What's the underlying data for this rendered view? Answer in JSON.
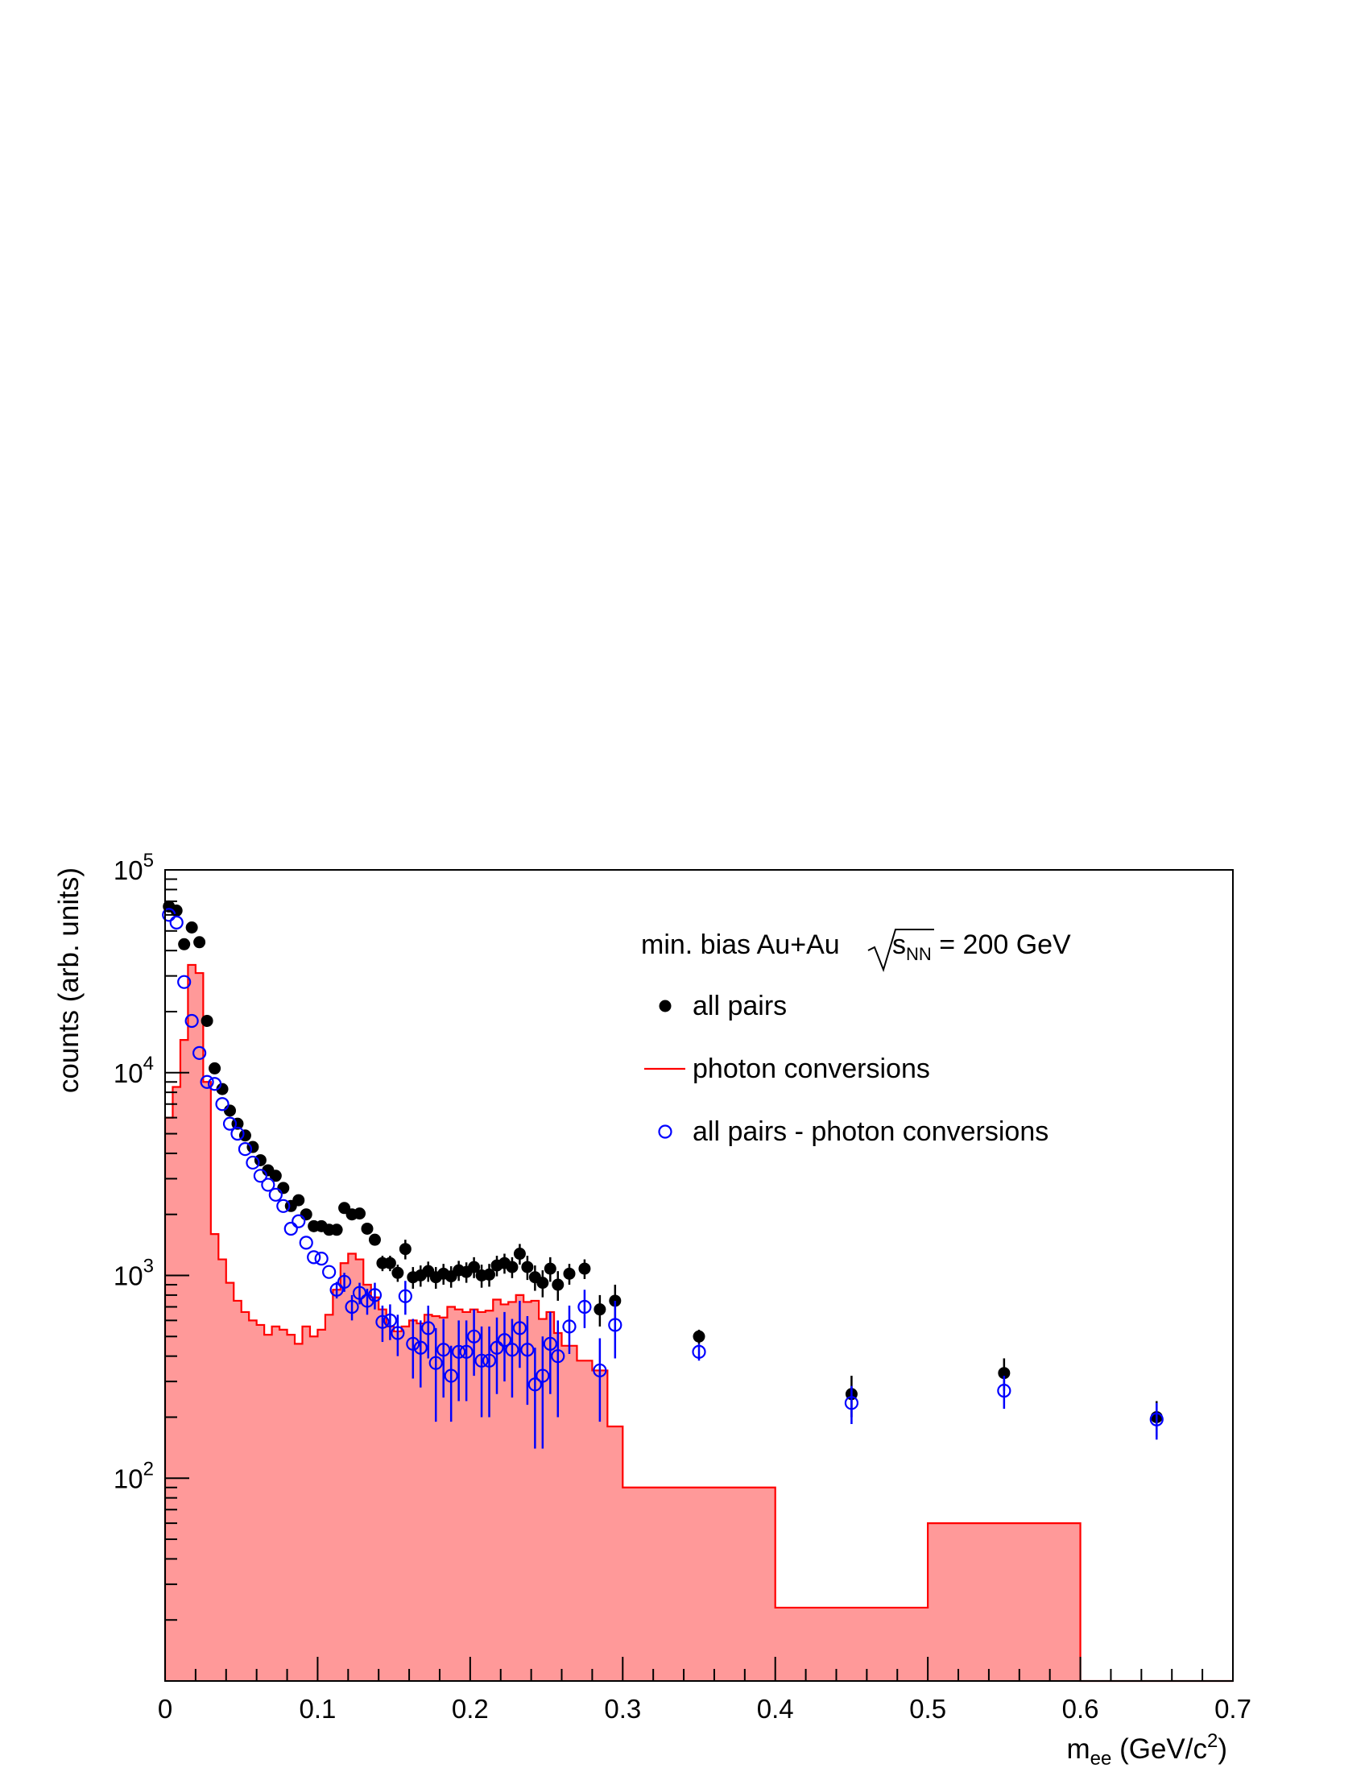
{
  "chart_data": {
    "type": "scatter",
    "header_text": {
      "prefix": "min. bias Au+Au ",
      "s_symbol": "s",
      "s_subscript": "NN",
      "suffix": " = 200 GeV"
    },
    "xlabel": {
      "main": "m",
      "sub": "ee",
      "units_prefix": " (GeV/c",
      "units_sup": "2",
      "units_suffix": ")"
    },
    "ylabel": "counts (arb. units)",
    "xlim": [
      0,
      0.7
    ],
    "ylim": [
      10,
      100000
    ],
    "y_scale": "log",
    "x_ticks": [
      {
        "value": 0,
        "label": "0"
      },
      {
        "value": 0.1,
        "label": "0.1"
      },
      {
        "value": 0.2,
        "label": "0.2"
      },
      {
        "value": 0.3,
        "label": "0.3"
      },
      {
        "value": 0.4,
        "label": "0.4"
      },
      {
        "value": 0.5,
        "label": "0.5"
      },
      {
        "value": 0.6,
        "label": "0.6"
      },
      {
        "value": 0.7,
        "label": "0.7"
      }
    ],
    "y_ticks": [
      {
        "value": 100,
        "base": "10",
        "exp": "2"
      },
      {
        "value": 1000,
        "base": "10",
        "exp": "3"
      },
      {
        "value": 10000,
        "base": "10",
        "exp": "4"
      },
      {
        "value": 100000,
        "base": "10",
        "exp": "5"
      }
    ],
    "legend": {
      "placement": "top-right",
      "entries": [
        {
          "label": "all pairs",
          "marker": "filled-circle",
          "color": "#000000"
        },
        {
          "label": "photon conversions",
          "marker": "line",
          "color": "#ff0000"
        },
        {
          "label": "all pairs - photon conversions",
          "marker": "open-circle",
          "color": "#0000ff"
        }
      ]
    },
    "series": [
      {
        "name": "photon conversions",
        "kind": "histogram",
        "line_color": "#ff0000",
        "fill_color": "#ff9999",
        "bins": [
          [
            0,
            0.005,
            6000
          ],
          [
            0.005,
            0.01,
            8500
          ],
          [
            0.01,
            0.015,
            14500
          ],
          [
            0.015,
            0.02,
            34000
          ],
          [
            0.02,
            0.025,
            31000
          ],
          [
            0.025,
            0.03,
            9000
          ],
          [
            0.03,
            0.035,
            1600
          ],
          [
            0.035,
            0.04,
            1200
          ],
          [
            0.04,
            0.045,
            920
          ],
          [
            0.045,
            0.05,
            750
          ],
          [
            0.05,
            0.055,
            660
          ],
          [
            0.055,
            0.06,
            600
          ],
          [
            0.06,
            0.065,
            570
          ],
          [
            0.065,
            0.07,
            510
          ],
          [
            0.07,
            0.075,
            560
          ],
          [
            0.075,
            0.08,
            540
          ],
          [
            0.08,
            0.085,
            510
          ],
          [
            0.085,
            0.09,
            460
          ],
          [
            0.09,
            0.095,
            560
          ],
          [
            0.095,
            0.1,
            500
          ],
          [
            0.1,
            0.105,
            540
          ],
          [
            0.105,
            0.11,
            640
          ],
          [
            0.11,
            0.115,
            850
          ],
          [
            0.115,
            0.12,
            1150
          ],
          [
            0.12,
            0.125,
            1280
          ],
          [
            0.125,
            0.13,
            1200
          ],
          [
            0.13,
            0.135,
            900
          ],
          [
            0.135,
            0.14,
            780
          ],
          [
            0.14,
            0.145,
            680
          ],
          [
            0.145,
            0.15,
            560
          ],
          [
            0.15,
            0.155,
            530
          ],
          [
            0.155,
            0.16,
            560
          ],
          [
            0.16,
            0.165,
            600
          ],
          [
            0.165,
            0.17,
            580
          ],
          [
            0.17,
            0.175,
            640
          ],
          [
            0.175,
            0.18,
            630
          ],
          [
            0.18,
            0.185,
            620
          ],
          [
            0.185,
            0.19,
            700
          ],
          [
            0.19,
            0.195,
            680
          ],
          [
            0.195,
            0.2,
            660
          ],
          [
            0.2,
            0.205,
            680
          ],
          [
            0.205,
            0.21,
            660
          ],
          [
            0.21,
            0.215,
            670
          ],
          [
            0.215,
            0.22,
            760
          ],
          [
            0.22,
            0.225,
            720
          ],
          [
            0.225,
            0.23,
            740
          ],
          [
            0.23,
            0.235,
            800
          ],
          [
            0.235,
            0.24,
            740
          ],
          [
            0.24,
            0.245,
            750
          ],
          [
            0.245,
            0.25,
            610
          ],
          [
            0.25,
            0.255,
            660
          ],
          [
            0.255,
            0.26,
            520
          ],
          [
            0.26,
            0.265,
            450
          ],
          [
            0.265,
            0.27,
            450
          ],
          [
            0.27,
            0.28,
            380
          ],
          [
            0.28,
            0.29,
            340
          ],
          [
            0.29,
            0.3,
            180
          ],
          [
            0.3,
            0.4,
            90
          ],
          [
            0.4,
            0.5,
            23
          ],
          [
            0.5,
            0.6,
            60
          ],
          [
            0.6,
            0.7,
            10
          ]
        ]
      },
      {
        "name": "all pairs",
        "kind": "points",
        "marker": "filled-circle",
        "color": "#000000",
        "points": [
          [
            0.0025,
            66000,
            0
          ],
          [
            0.0075,
            63000,
            0
          ],
          [
            0.0125,
            43000,
            0
          ],
          [
            0.0175,
            52000,
            0
          ],
          [
            0.0225,
            44000,
            0
          ],
          [
            0.0275,
            18000,
            0
          ],
          [
            0.0325,
            10500,
            0
          ],
          [
            0.0375,
            8300,
            0
          ],
          [
            0.0425,
            6500,
            0
          ],
          [
            0.0475,
            5600,
            0
          ],
          [
            0.0525,
            4900,
            0
          ],
          [
            0.0575,
            4300,
            0
          ],
          [
            0.0625,
            3700,
            0
          ],
          [
            0.0675,
            3300,
            0
          ],
          [
            0.0725,
            3100,
            0
          ],
          [
            0.0775,
            2700,
            0
          ],
          [
            0.0825,
            2200,
            0
          ],
          [
            0.0875,
            2350,
            0
          ],
          [
            0.0925,
            2000,
            0
          ],
          [
            0.0975,
            1750,
            0
          ],
          [
            0.1025,
            1750,
            0
          ],
          [
            0.1075,
            1680,
            0
          ],
          [
            0.1125,
            1680,
            0
          ],
          [
            0.1175,
            2150,
            0
          ],
          [
            0.1225,
            2000,
            0
          ],
          [
            0.1275,
            2020,
            0
          ],
          [
            0.1325,
            1700,
            0
          ],
          [
            0.1375,
            1500,
            0
          ],
          [
            0.1425,
            1150,
            100
          ],
          [
            0.1475,
            1150,
            100
          ],
          [
            0.1525,
            1030,
            100
          ],
          [
            0.1575,
            1350,
            150
          ],
          [
            0.1625,
            980,
            120
          ],
          [
            0.1675,
            1000,
            120
          ],
          [
            0.1725,
            1050,
            120
          ],
          [
            0.1775,
            980,
            120
          ],
          [
            0.1825,
            1020,
            120
          ],
          [
            0.1875,
            990,
            120
          ],
          [
            0.1925,
            1060,
            120
          ],
          [
            0.1975,
            1040,
            120
          ],
          [
            0.2025,
            1100,
            130
          ],
          [
            0.2075,
            1000,
            130
          ],
          [
            0.2125,
            1010,
            130
          ],
          [
            0.2175,
            1120,
            130
          ],
          [
            0.2225,
            1150,
            130
          ],
          [
            0.2275,
            1100,
            130
          ],
          [
            0.2325,
            1280,
            150
          ],
          [
            0.2375,
            1100,
            150
          ],
          [
            0.2425,
            980,
            140
          ],
          [
            0.2475,
            920,
            140
          ],
          [
            0.2525,
            1080,
            150
          ],
          [
            0.2575,
            900,
            150
          ],
          [
            0.265,
            1020,
            120
          ],
          [
            0.275,
            1080,
            120
          ],
          [
            0.285,
            680,
            120
          ],
          [
            0.295,
            750,
            150
          ],
          [
            0.35,
            500,
            40
          ],
          [
            0.45,
            260,
            60
          ],
          [
            0.55,
            330,
            60
          ],
          [
            0.65,
            200,
            40
          ]
        ]
      },
      {
        "name": "all pairs - photon conversions",
        "kind": "points",
        "marker": "open-circle",
        "color": "#0000ff",
        "points": [
          [
            0.0025,
            60000,
            0
          ],
          [
            0.0075,
            55000,
            0
          ],
          [
            0.0125,
            28000,
            0
          ],
          [
            0.0175,
            18000,
            0
          ],
          [
            0.0225,
            12500,
            0
          ],
          [
            0.0275,
            9000,
            0
          ],
          [
            0.0325,
            8800,
            0
          ],
          [
            0.0375,
            7000,
            0
          ],
          [
            0.0425,
            5600,
            0
          ],
          [
            0.0475,
            5000,
            0
          ],
          [
            0.0525,
            4200,
            0
          ],
          [
            0.0575,
            3600,
            0
          ],
          [
            0.0625,
            3100,
            0
          ],
          [
            0.0675,
            2800,
            0
          ],
          [
            0.0725,
            2500,
            0
          ],
          [
            0.0775,
            2200,
            0
          ],
          [
            0.0825,
            1700,
            0
          ],
          [
            0.0875,
            1850,
            0
          ],
          [
            0.0925,
            1450,
            0
          ],
          [
            0.0975,
            1230,
            0
          ],
          [
            0.1025,
            1210,
            0
          ],
          [
            0.1075,
            1040,
            0
          ],
          [
            0.1125,
            850,
            80
          ],
          [
            0.1175,
            930,
            100
          ],
          [
            0.1225,
            700,
            100
          ],
          [
            0.1275,
            820,
            100
          ],
          [
            0.1325,
            750,
            110
          ],
          [
            0.1375,
            800,
            120
          ],
          [
            0.1425,
            590,
            120
          ],
          [
            0.1475,
            600,
            120
          ],
          [
            0.1525,
            520,
            120
          ],
          [
            0.1575,
            790,
            150
          ],
          [
            0.1625,
            460,
            150
          ],
          [
            0.1675,
            440,
            160
          ],
          [
            0.1725,
            550,
            160
          ],
          [
            0.1775,
            370,
            180
          ],
          [
            0.1825,
            430,
            180
          ],
          [
            0.1875,
            320,
            130
          ],
          [
            0.1925,
            420,
            180
          ],
          [
            0.1975,
            420,
            180
          ],
          [
            0.2025,
            500,
            180
          ],
          [
            0.2075,
            380,
            180
          ],
          [
            0.2125,
            380,
            180
          ],
          [
            0.2175,
            440,
            180
          ],
          [
            0.2225,
            480,
            180
          ],
          [
            0.2275,
            430,
            180
          ],
          [
            0.2325,
            550,
            200
          ],
          [
            0.2375,
            430,
            200
          ],
          [
            0.2425,
            290,
            150
          ],
          [
            0.2475,
            320,
            180
          ],
          [
            0.2525,
            460,
            200
          ],
          [
            0.2575,
            400,
            200
          ],
          [
            0.265,
            560,
            150
          ],
          [
            0.275,
            700,
            150
          ],
          [
            0.285,
            340,
            150
          ],
          [
            0.295,
            570,
            180
          ],
          [
            0.35,
            420,
            40
          ],
          [
            0.45,
            235,
            50
          ],
          [
            0.55,
            270,
            50
          ],
          [
            0.65,
            195,
            40
          ]
        ]
      }
    ]
  }
}
